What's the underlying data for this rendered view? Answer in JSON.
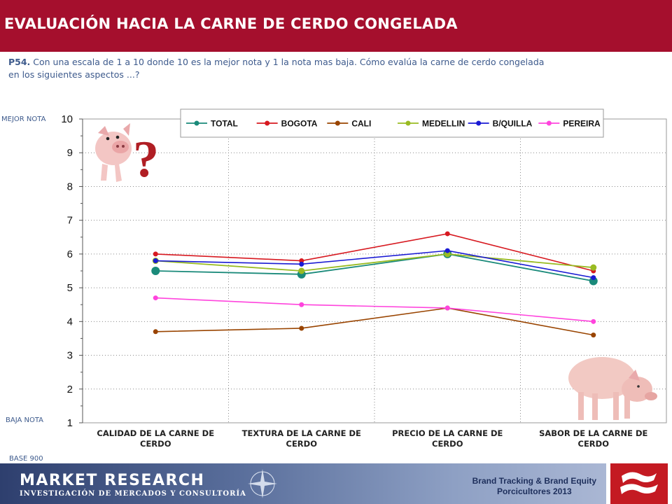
{
  "header": {
    "title": "EVALUACIÓN HACIA LA CARNE DE CERDO CONGELADA"
  },
  "question": {
    "code": "P54.",
    "text": " Con una escala de 1 a 10 donde 10 es la mejor nota  y 1 la nota mas baja.  Cómo evalúa la carne de cerdo congelada en los siguientes aspectos ...?"
  },
  "labels": {
    "best": "MEJOR NOTA",
    "worst": "BAJA NOTA",
    "base": "BASE 900"
  },
  "footer": {
    "brand_title": "MARKET RESEARCH",
    "brand_subtitle": "INVESTIGACIÓN DE MERCADOS Y CONSULTORÍA",
    "study_line1": "Brand Tracking & Brand Equity",
    "study_line2": "Porcicultores 2013"
  },
  "chart_data": {
    "type": "line",
    "title": "",
    "xlabel": "",
    "ylabel": "",
    "categories": [
      "CALIDAD DE LA CARNE DE CERDO",
      "TEXTURA DE LA CARNE DE CERDO",
      "PRECIO DE LA CARNE DE CERDO",
      "SABOR DE LA CARNE DE CERDO"
    ],
    "category_lines": [
      [
        "CALIDAD DE LA CARNE DE",
        "CERDO"
      ],
      [
        "TEXTURA DE LA CARNE DE",
        "CERDO"
      ],
      [
        "PRECIO DE LA CARNE DE",
        "CERDO"
      ],
      [
        "SABOR DE LA CARNE DE",
        "CERDO"
      ]
    ],
    "ylim": [
      1,
      10
    ],
    "yticks": [
      1,
      2,
      3,
      4,
      5,
      6,
      7,
      8,
      9,
      10
    ],
    "grid": true,
    "legend_position": "top",
    "series": [
      {
        "name": "TOTAL",
        "color": "#1a8a7a",
        "values": [
          5.5,
          5.4,
          6.0,
          5.2
        ]
      },
      {
        "name": "BOGOTA",
        "color": "#d71920",
        "values": [
          6.0,
          5.8,
          6.6,
          5.5
        ]
      },
      {
        "name": "CALI",
        "color": "#994400",
        "values": [
          3.7,
          3.8,
          4.4,
          3.6
        ]
      },
      {
        "name": "MEDELLIN",
        "color": "#99bb22",
        "values": [
          5.8,
          5.5,
          6.0,
          5.6
        ]
      },
      {
        "name": "B/QUILLA",
        "color": "#1a1ad4",
        "values": [
          5.8,
          5.7,
          6.1,
          5.3
        ]
      },
      {
        "name": "PEREIRA",
        "color": "#ff44dd",
        "values": [
          4.7,
          4.5,
          4.4,
          4.0
        ]
      }
    ]
  }
}
